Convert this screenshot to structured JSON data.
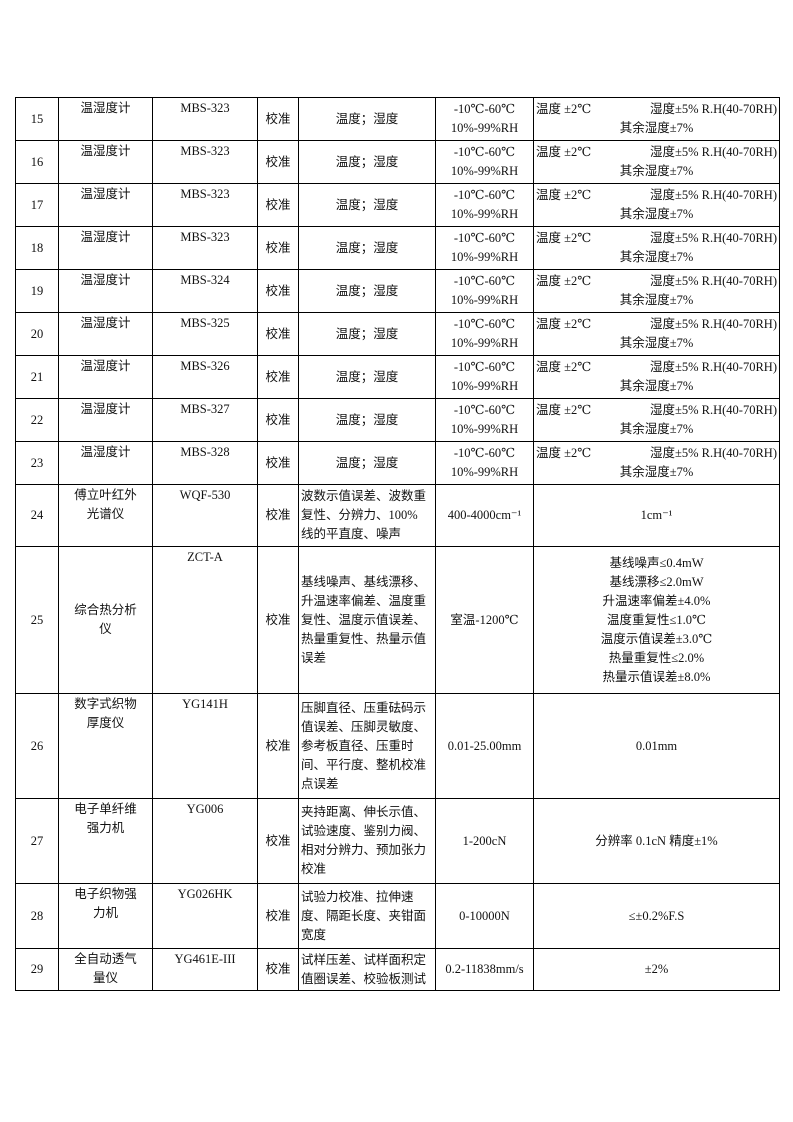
{
  "table": {
    "rows": [
      {
        "no": "15",
        "name": [
          "温湿度计"
        ],
        "model": "MBS-323",
        "method": "校准",
        "params": [
          "温度；湿度"
        ],
        "range": [
          "-10℃-60℃",
          "10%-99%RH"
        ],
        "accuracy": [
          [
            "温度 ±2℃",
            "湿度±5% R.H(40-70RH)"
          ],
          "其余湿度±7%"
        ]
      },
      {
        "no": "16",
        "name": [
          "温湿度计"
        ],
        "model": "MBS-323",
        "method": "校准",
        "params": [
          "温度；湿度"
        ],
        "range": [
          "-10℃-60℃",
          "10%-99%RH"
        ],
        "accuracy": [
          [
            "温度 ±2℃",
            "湿度±5% R.H(40-70RH)"
          ],
          "其余湿度±7%"
        ]
      },
      {
        "no": "17",
        "name": [
          "温湿度计"
        ],
        "model": "MBS-323",
        "method": "校准",
        "params": [
          "温度；湿度"
        ],
        "range": [
          "-10℃-60℃",
          "10%-99%RH"
        ],
        "accuracy": [
          [
            "温度 ±2℃",
            "湿度±5% R.H(40-70RH)"
          ],
          "其余湿度±7%"
        ]
      },
      {
        "no": "18",
        "name": [
          "温湿度计"
        ],
        "model": "MBS-323",
        "method": "校准",
        "params": [
          "温度；湿度"
        ],
        "range": [
          "-10℃-60℃",
          "10%-99%RH"
        ],
        "accuracy": [
          [
            "温度 ±2℃",
            "湿度±5% R.H(40-70RH)"
          ],
          "其余湿度±7%"
        ]
      },
      {
        "no": "19",
        "name": [
          "温湿度计"
        ],
        "model": "MBS-324",
        "method": "校准",
        "params": [
          "温度；湿度"
        ],
        "range": [
          "-10℃-60℃",
          "10%-99%RH"
        ],
        "accuracy": [
          [
            "温度 ±2℃",
            "湿度±5% R.H(40-70RH)"
          ],
          "其余湿度±7%"
        ]
      },
      {
        "no": "20",
        "name": [
          "温湿度计"
        ],
        "model": "MBS-325",
        "method": "校准",
        "params": [
          "温度；湿度"
        ],
        "range": [
          "-10℃-60℃",
          "10%-99%RH"
        ],
        "accuracy": [
          [
            "温度 ±2℃",
            "湿度±5% R.H(40-70RH)"
          ],
          "其余湿度±7%"
        ]
      },
      {
        "no": "21",
        "name": [
          "温湿度计"
        ],
        "model": "MBS-326",
        "method": "校准",
        "params": [
          "温度；湿度"
        ],
        "range": [
          "-10℃-60℃",
          "10%-99%RH"
        ],
        "accuracy": [
          [
            "温度 ±2℃",
            "湿度±5% R.H(40-70RH)"
          ],
          "其余湿度±7%"
        ]
      },
      {
        "no": "22",
        "name": [
          "温湿度计"
        ],
        "model": "MBS-327",
        "method": "校准",
        "params": [
          "温度；湿度"
        ],
        "range": [
          "-10℃-60℃",
          "10%-99%RH"
        ],
        "accuracy": [
          [
            "温度 ±2℃",
            "湿度±5% R.H(40-70RH)"
          ],
          "其余湿度±7%"
        ]
      },
      {
        "no": "23",
        "name": [
          "温湿度计"
        ],
        "model": "MBS-328",
        "method": "校准",
        "params": [
          "温度；湿度"
        ],
        "range": [
          "-10℃-60℃",
          "10%-99%RH"
        ],
        "accuracy": [
          [
            "温度 ±2℃",
            "湿度±5% R.H(40-70RH)"
          ],
          "其余湿度±7%"
        ]
      },
      {
        "no": "24",
        "name": [
          "傅立叶红外",
          "光谱仪"
        ],
        "model": "WQF-530",
        "method": "校准",
        "params": [
          "波数示值误差、波数重",
          "复性、分辨力、100%",
          "线的平直度、噪声"
        ],
        "range": [
          "400-4000cm⁻¹"
        ],
        "accuracy": [
          "1cm⁻¹"
        ]
      },
      {
        "no": "25",
        "name": [
          "综合热分析",
          "仪"
        ],
        "model": "ZCT-A",
        "method": "校准",
        "params": [
          "基线噪声、基线漂移、",
          "升温速率偏差、温度重",
          "复性、温度示值误差、",
          "热量重复性、热量示值",
          "误差"
        ],
        "range": [
          "室温-1200℃"
        ],
        "accuracy": [
          "基线噪声≤0.4mW",
          "基线漂移≤2.0mW",
          "升温速率偏差±4.0%",
          "温度重复性≤1.0℃",
          "温度示值误差±3.0℃",
          "热量重复性≤2.0%",
          "热量示值误差±8.0%"
        ]
      },
      {
        "no": "26",
        "name": [
          "数字式织物",
          "厚度仪"
        ],
        "model": "YG141H",
        "method": "校准",
        "params": [
          "压脚直径、压重砝码示",
          "值误差、压脚灵敏度、",
          "参考板直径、压重时",
          "间、平行度、整机校准",
          "点误差"
        ],
        "range": [
          "0.01-25.00mm"
        ],
        "accuracy": [
          "0.01mm"
        ]
      },
      {
        "no": "27",
        "name": [
          "电子单纤维",
          "强力机"
        ],
        "model": "YG006",
        "method": "校准",
        "params": [
          "夹持距离、伸长示值、",
          "试验速度、鉴别力阀、",
          "相对分辨力、预加张力",
          "校准"
        ],
        "range": [
          "1-200cN"
        ],
        "accuracy": [
          "分辨率 0.1cN 精度±1%"
        ]
      },
      {
        "no": "28",
        "name": [
          "电子织物强",
          "力机"
        ],
        "model": "YG026HK",
        "method": "校准",
        "params": [
          "试验力校准、拉伸速",
          "度、隔距长度、夹钳面",
          "宽度"
        ],
        "range": [
          "0-10000N"
        ],
        "accuracy": [
          "≤±0.2%F.S"
        ]
      },
      {
        "no": "29",
        "name": [
          "全自动透气",
          "量仪"
        ],
        "model": "YG461E-III",
        "method": "校准",
        "params": [
          "试样压差、试样面积定",
          "值圈误差、校验板测试"
        ],
        "range": [
          "0.2-11838mm/s"
        ],
        "accuracy": [
          "±2%"
        ]
      }
    ]
  }
}
